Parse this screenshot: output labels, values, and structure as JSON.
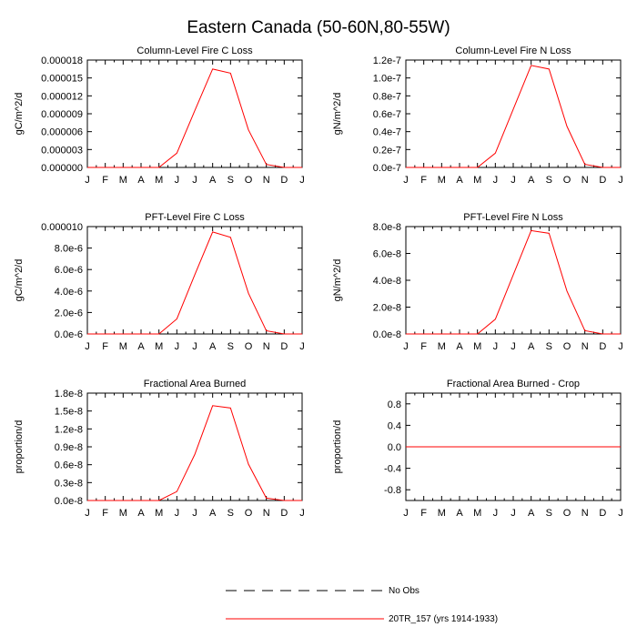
{
  "figure_title": "Eastern Canada (50-60N,80-55W)",
  "colors": {
    "model_line": "#ff0000",
    "obs_line": "#000000",
    "axis": "#000000"
  },
  "legend": {
    "no_obs": "No Obs",
    "model": "20TR_157 (yrs 1914-1933)"
  },
  "chart_data": [
    {
      "type": "line",
      "title": "Column-Level Fire C Loss",
      "xlabel": "",
      "ylabel": "gC/m^2/d",
      "categories": [
        "J",
        "F",
        "M",
        "A",
        "M",
        "J",
        "J",
        "A",
        "S",
        "O",
        "N",
        "D",
        "J"
      ],
      "ylim": [
        0,
        1.8e-05
      ],
      "yticks": [
        0,
        3e-06,
        6e-06,
        9e-06,
        1.2e-05,
        1.5e-05,
        1.8e-05
      ],
      "yticklabels": [
        "0.000000",
        "0.000003",
        "0.000006",
        "0.000009",
        "0.000012",
        "0.000015",
        "0.000018"
      ],
      "series": [
        {
          "name": "20TR_157 (yrs 1914-1933)",
          "color": "#ff0000",
          "values": [
            0,
            0,
            0,
            0,
            0,
            2.4e-06,
            9.5e-06,
            1.65e-05,
            1.58e-05,
            6.3e-06,
            5e-07,
            0,
            0
          ]
        }
      ]
    },
    {
      "type": "line",
      "title": "Column-Level Fire N Loss",
      "xlabel": "",
      "ylabel": "gN/m^2/d",
      "categories": [
        "J",
        "F",
        "M",
        "A",
        "M",
        "J",
        "J",
        "A",
        "S",
        "O",
        "N",
        "D",
        "J"
      ],
      "ylim": [
        0,
        1.2e-07
      ],
      "yticks": [
        0,
        2e-08,
        4e-08,
        6e-08,
        8e-08,
        1e-07,
        1.2e-07
      ],
      "yticklabels": [
        "0.0e-7",
        "0.2e-7",
        "0.4e-7",
        "0.6e-7",
        "0.8e-7",
        "1.0e-7",
        "1.2e-7"
      ],
      "series": [
        {
          "name": "20TR_157 (yrs 1914-1933)",
          "color": "#ff0000",
          "values": [
            0,
            0,
            0,
            0,
            0,
            1.6e-08,
            6.5e-08,
            1.14e-07,
            1.1e-07,
            4.6e-08,
            3.5e-09,
            0,
            0
          ]
        }
      ]
    },
    {
      "type": "line",
      "title": "PFT-Level Fire C Loss",
      "xlabel": "",
      "ylabel": "gC/m^2/d",
      "categories": [
        "J",
        "F",
        "M",
        "A",
        "M",
        "J",
        "J",
        "A",
        "S",
        "O",
        "N",
        "D",
        "J"
      ],
      "ylim": [
        0,
        1e-05
      ],
      "yticks": [
        0,
        2e-06,
        4e-06,
        6e-06,
        8e-06,
        1e-05
      ],
      "yticklabels": [
        "0.0e-6",
        "2.0e-6",
        "4.0e-6",
        "6.0e-6",
        "8.0e-6",
        "0.000010"
      ],
      "series": [
        {
          "name": "20TR_157 (yrs 1914-1933)",
          "color": "#ff0000",
          "values": [
            0,
            0,
            0,
            0,
            0,
            1.4e-06,
            5.5e-06,
            9.5e-06,
            9e-06,
            3.8e-06,
            3e-07,
            0,
            0
          ]
        }
      ]
    },
    {
      "type": "line",
      "title": "PFT-Level Fire N Loss",
      "xlabel": "",
      "ylabel": "gN/m^2/d",
      "categories": [
        "J",
        "F",
        "M",
        "A",
        "M",
        "J",
        "J",
        "A",
        "S",
        "O",
        "N",
        "D",
        "J"
      ],
      "ylim": [
        0,
        8e-08
      ],
      "yticks": [
        0,
        2e-08,
        4e-08,
        6e-08,
        8e-08
      ],
      "yticklabels": [
        "0.0e-8",
        "2.0e-8",
        "4.0e-8",
        "6.0e-8",
        "8.0e-8"
      ],
      "series": [
        {
          "name": "20TR_157 (yrs 1914-1933)",
          "color": "#ff0000",
          "values": [
            0,
            0,
            0,
            0,
            0,
            1.1e-08,
            4.4e-08,
            7.7e-08,
            7.5e-08,
            3.2e-08,
            2.5e-09,
            0,
            0
          ]
        }
      ]
    },
    {
      "type": "line",
      "title": "Fractional Area Burned",
      "xlabel": "",
      "ylabel": "proportion/d",
      "categories": [
        "J",
        "F",
        "M",
        "A",
        "M",
        "J",
        "J",
        "A",
        "S",
        "O",
        "N",
        "D",
        "J"
      ],
      "ylim": [
        0,
        1.8e-08
      ],
      "yticks": [
        0,
        3e-09,
        6e-09,
        9e-09,
        1.2e-08,
        1.5e-08,
        1.8e-08
      ],
      "yticklabels": [
        "0.0e-8",
        "0.3e-8",
        "0.6e-8",
        "0.9e-8",
        "1.2e-8",
        "1.5e-8",
        "1.8e-8"
      ],
      "series": [
        {
          "name": "20TR_157 (yrs 1914-1933)",
          "color": "#ff0000",
          "values": [
            0,
            0,
            0,
            0,
            0,
            1.5e-09,
            7.7e-09,
            1.59e-08,
            1.55e-08,
            6.1e-09,
            4e-10,
            0,
            0
          ]
        }
      ]
    },
    {
      "type": "line",
      "title": "Fractional Area Burned - Crop",
      "xlabel": "",
      "ylabel": "proportion/d",
      "categories": [
        "J",
        "F",
        "M",
        "A",
        "M",
        "J",
        "J",
        "A",
        "S",
        "O",
        "N",
        "D",
        "J"
      ],
      "ylim": [
        -1,
        1
      ],
      "yticks": [
        -0.8,
        -0.4,
        0,
        0.4,
        0.8
      ],
      "yticklabels": [
        "-0.8",
        "-0.4",
        "0.0",
        "0.4",
        "0.8"
      ],
      "series": [
        {
          "name": "20TR_157 (yrs 1914-1933)",
          "color": "#ff0000",
          "values": [
            0,
            0,
            0,
            0,
            0,
            0,
            0,
            0,
            0,
            0,
            0,
            0,
            0
          ]
        }
      ]
    }
  ]
}
